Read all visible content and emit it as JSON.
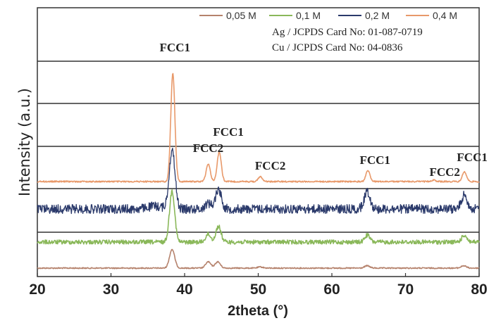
{
  "chart_data": {
    "type": "line",
    "xlabel": "2theta (°)",
    "ylabel": "Intensity (a.u.)",
    "xlim": [
      20,
      80
    ],
    "x_ticks": [
      "20",
      "30",
      "40",
      "50",
      "60",
      "70",
      "80"
    ],
    "legend_position": "top-right",
    "series": [
      {
        "name": "0,05 M",
        "color": "#b5826c",
        "peaks": [
          {
            "x": 38.3,
            "h": 0.95
          },
          {
            "x": 43.2,
            "h": 0.32
          },
          {
            "x": 44.5,
            "h": 0.32
          },
          {
            "x": 50.3,
            "h": 0.06
          },
          {
            "x": 64.8,
            "h": 0.12
          },
          {
            "x": 77.9,
            "h": 0.12
          }
        ]
      },
      {
        "name": "0,1 M",
        "color": "#8ab85a",
        "peaks": [
          {
            "x": 38.3,
            "h": 2.6
          },
          {
            "x": 43.2,
            "h": 0.4
          },
          {
            "x": 44.6,
            "h": 0.8
          },
          {
            "x": 64.8,
            "h": 0.35
          },
          {
            "x": 78.0,
            "h": 0.35
          }
        ]
      },
      {
        "name": "0,2 M",
        "color": "#2b3a6b",
        "peaks": [
          {
            "x": 38.3,
            "h": 3.0
          },
          {
            "x": 43.2,
            "h": 0.3
          },
          {
            "x": 44.6,
            "h": 1.0
          },
          {
            "x": 64.8,
            "h": 0.9
          },
          {
            "x": 78.0,
            "h": 0.7
          }
        ]
      },
      {
        "name": "0,4 M",
        "color": "#e8996a",
        "peaks": [
          {
            "x": 38.4,
            "h": 5.5
          },
          {
            "x": 43.2,
            "h": 0.9
          },
          {
            "x": 44.7,
            "h": 1.5
          },
          {
            "x": 50.3,
            "h": 0.25
          },
          {
            "x": 64.9,
            "h": 0.55
          },
          {
            "x": 73.8,
            "h": 0.08
          },
          {
            "x": 78.0,
            "h": 0.5
          }
        ]
      }
    ],
    "annotations": [
      {
        "text": "FCC1",
        "x": 38.4
      },
      {
        "text": "FCC2",
        "x": 43.2
      },
      {
        "text": "FCC1",
        "x": 44.7
      },
      {
        "text": "FCC2",
        "x": 50.3
      },
      {
        "text": "FCC1",
        "x": 64.9
      },
      {
        "text": "FCC2",
        "x": 73.8
      },
      {
        "text": "FCC1",
        "x": 78.1
      }
    ],
    "reference_cards": [
      "Ag / JCPDS Card No: 01-087-0719",
      "Cu / JCPDS Card No: 04-0836"
    ]
  }
}
